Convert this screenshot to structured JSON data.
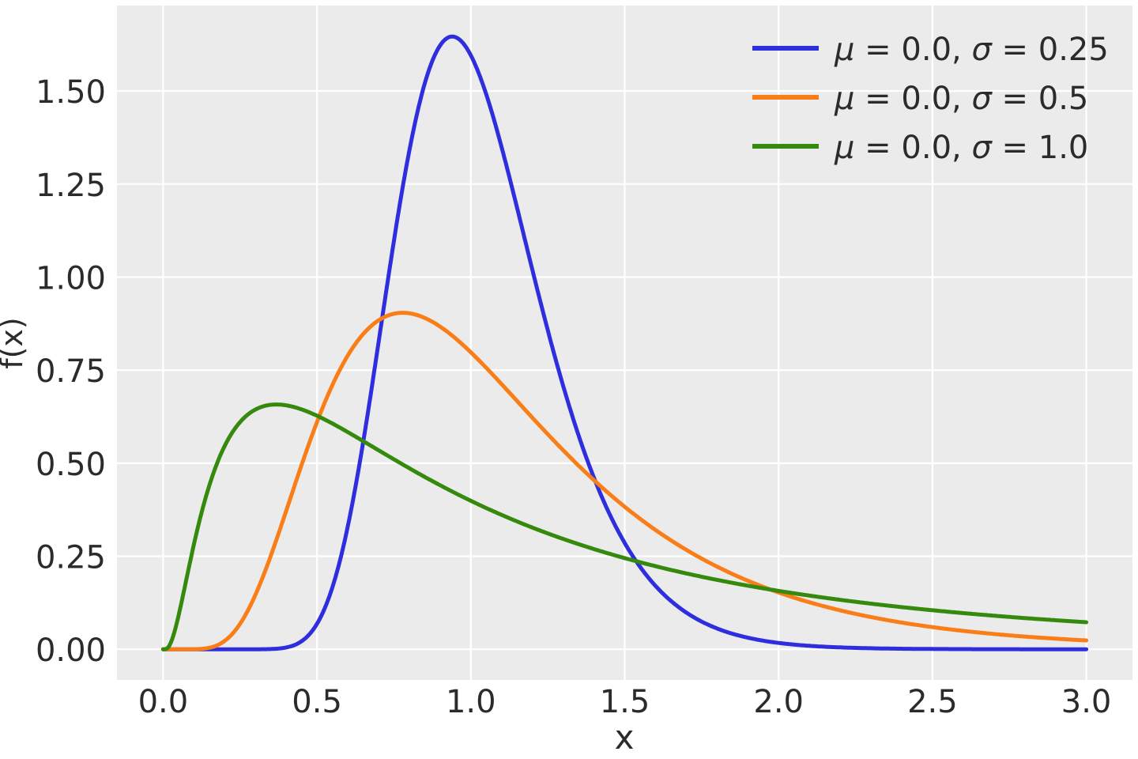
{
  "chart_data": {
    "type": "line",
    "title": "",
    "xlabel": "x",
    "ylabel": "f(x)",
    "xlim": [
      -0.15,
      3.15
    ],
    "ylim": [
      -0.0824,
      1.7297
    ],
    "grid": true,
    "legend_position": "upper right",
    "legend_frame": false,
    "plot_background_color": "#ebebeb",
    "grid_color": "#ffffff",
    "text_color": "#2b2b2b",
    "xticks": {
      "values": [
        0.0,
        0.5,
        1.0,
        1.5,
        2.0,
        2.5,
        3.0
      ],
      "labels": [
        "0.0",
        "0.5",
        "1.0",
        "1.5",
        "2.0",
        "2.5",
        "3.0"
      ]
    },
    "yticks": {
      "values": [
        0.0,
        0.25,
        0.5,
        0.75,
        1.0,
        1.25,
        1.5
      ],
      "labels": [
        "0.00",
        "0.25",
        "0.50",
        "0.75",
        "1.00",
        "1.25",
        "1.50"
      ]
    },
    "sample_x": [
      0.0,
      0.1,
      0.2,
      0.3,
      0.4,
      0.5,
      0.6,
      0.7,
      0.8,
      0.9,
      1.0,
      1.1,
      1.2,
      1.3,
      1.4,
      1.5,
      1.6,
      1.7,
      1.8,
      1.9,
      2.0,
      2.1,
      2.2,
      2.3,
      2.4,
      2.5,
      2.6,
      2.7,
      2.8,
      2.9,
      3.0
    ],
    "series": [
      {
        "name": "lognormal-mu-0.0-sigma-0.25",
        "label": "μ = 0.0, σ = 0.25",
        "label_parts": [
          {
            "text": "μ",
            "italic": true
          },
          {
            "text": " = 0.0, ",
            "italic": false
          },
          {
            "text": "σ",
            "italic": true
          },
          {
            "text": " = 0.25",
            "italic": false
          }
        ],
        "color": "#2e2ede",
        "distribution": "lognormal",
        "mu": 0.0,
        "sigma": 0.25,
        "peak": {
          "x": 0.9394,
          "y": 1.6473
        },
        "y": [
          0.0,
          0.0,
          0.0,
          0.0,
          0.0048,
          0.0684,
          0.3298,
          0.8239,
          1.3393,
          1.6224,
          1.5958,
          1.349,
          1.0193,
          0.7077,
          0.4608,
          0.2856,
          0.1704,
          0.0987,
          0.0559,
          0.0311,
          0.0171,
          0.0093,
          0.005,
          0.0027,
          0.0014,
          0.0008,
          0.0004,
          0.0002,
          0.0001,
          0.0001,
          0.0
        ]
      },
      {
        "name": "lognormal-mu-0.0-sigma-0.5",
        "label": "μ = 0.0, σ = 0.5",
        "label_parts": [
          {
            "text": "μ",
            "italic": true
          },
          {
            "text": " = 0.0, ",
            "italic": false
          },
          {
            "text": "σ",
            "italic": true
          },
          {
            "text": " = 0.5",
            "italic": false
          }
        ],
        "color": "#f97e18",
        "distribution": "lognormal",
        "mu": 0.0,
        "sigma": 0.5,
        "peak": {
          "x": 0.7788,
          "y": 0.9041
        },
        "y": [
          0.0,
          0.0002,
          0.0224,
          0.1465,
          0.372,
          0.6105,
          0.7891,
          0.8838,
          0.9028,
          0.8671,
          0.7979,
          0.7123,
          0.6221,
          0.5348,
          0.4546,
          0.3829,
          0.3206,
          0.2673,
          0.2221,
          0.1842,
          0.1526,
          0.1263,
          0.1046,
          0.0866,
          0.0718,
          0.0595,
          0.0494,
          0.0411,
          0.0342,
          0.0285,
          0.0238
        ]
      },
      {
        "name": "lognormal-mu-0.0-sigma-1.0",
        "label": "μ = 0.0, σ = 1.0",
        "label_parts": [
          {
            "text": "μ",
            "italic": true
          },
          {
            "text": " = 0.0, ",
            "italic": false
          },
          {
            "text": "σ",
            "italic": true
          },
          {
            "text": " = 1.0",
            "italic": false
          }
        ],
        "color": "#358a0d",
        "distribution": "lognormal",
        "mu": 0.0,
        "sigma": 1.0,
        "peak": {
          "x": 0.3679,
          "y": 0.6577
        },
        "y": [
          0.0,
          0.2813,
          0.5462,
          0.6442,
          0.6554,
          0.6275,
          0.5836,
          0.5348,
          0.4864,
          0.4408,
          0.3989,
          0.361,
          0.327,
          0.2965,
          0.2693,
          0.245,
          0.2233,
          0.2039,
          0.1865,
          0.1709,
          0.1569,
          0.1443,
          0.1329,
          0.1226,
          0.1133,
          0.1049,
          0.0972,
          0.0902,
          0.0839,
          0.078,
          0.0727
        ]
      }
    ]
  }
}
